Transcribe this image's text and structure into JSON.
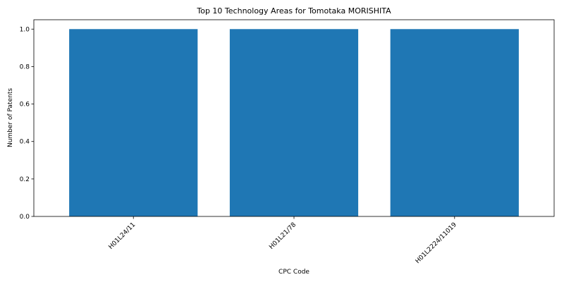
{
  "chart_data": {
    "type": "bar",
    "title": "Top 10 Technology Areas for Tomotaka MORISHITA",
    "xlabel": "CPC Code",
    "ylabel": "Number of Patents",
    "categories": [
      "H01L24/11",
      "H01L21/78",
      "H01L2224/11019"
    ],
    "values": [
      1,
      1,
      1
    ],
    "ylim": [
      0,
      1.05
    ],
    "yticks": [
      0.0,
      0.2,
      0.4,
      0.6,
      0.8,
      1.0
    ],
    "ytick_labels": [
      "0.0",
      "0.2",
      "0.4",
      "0.6",
      "0.8",
      "1.0"
    ],
    "bar_color": "#1f77b4",
    "grid": false,
    "legend": "none"
  }
}
